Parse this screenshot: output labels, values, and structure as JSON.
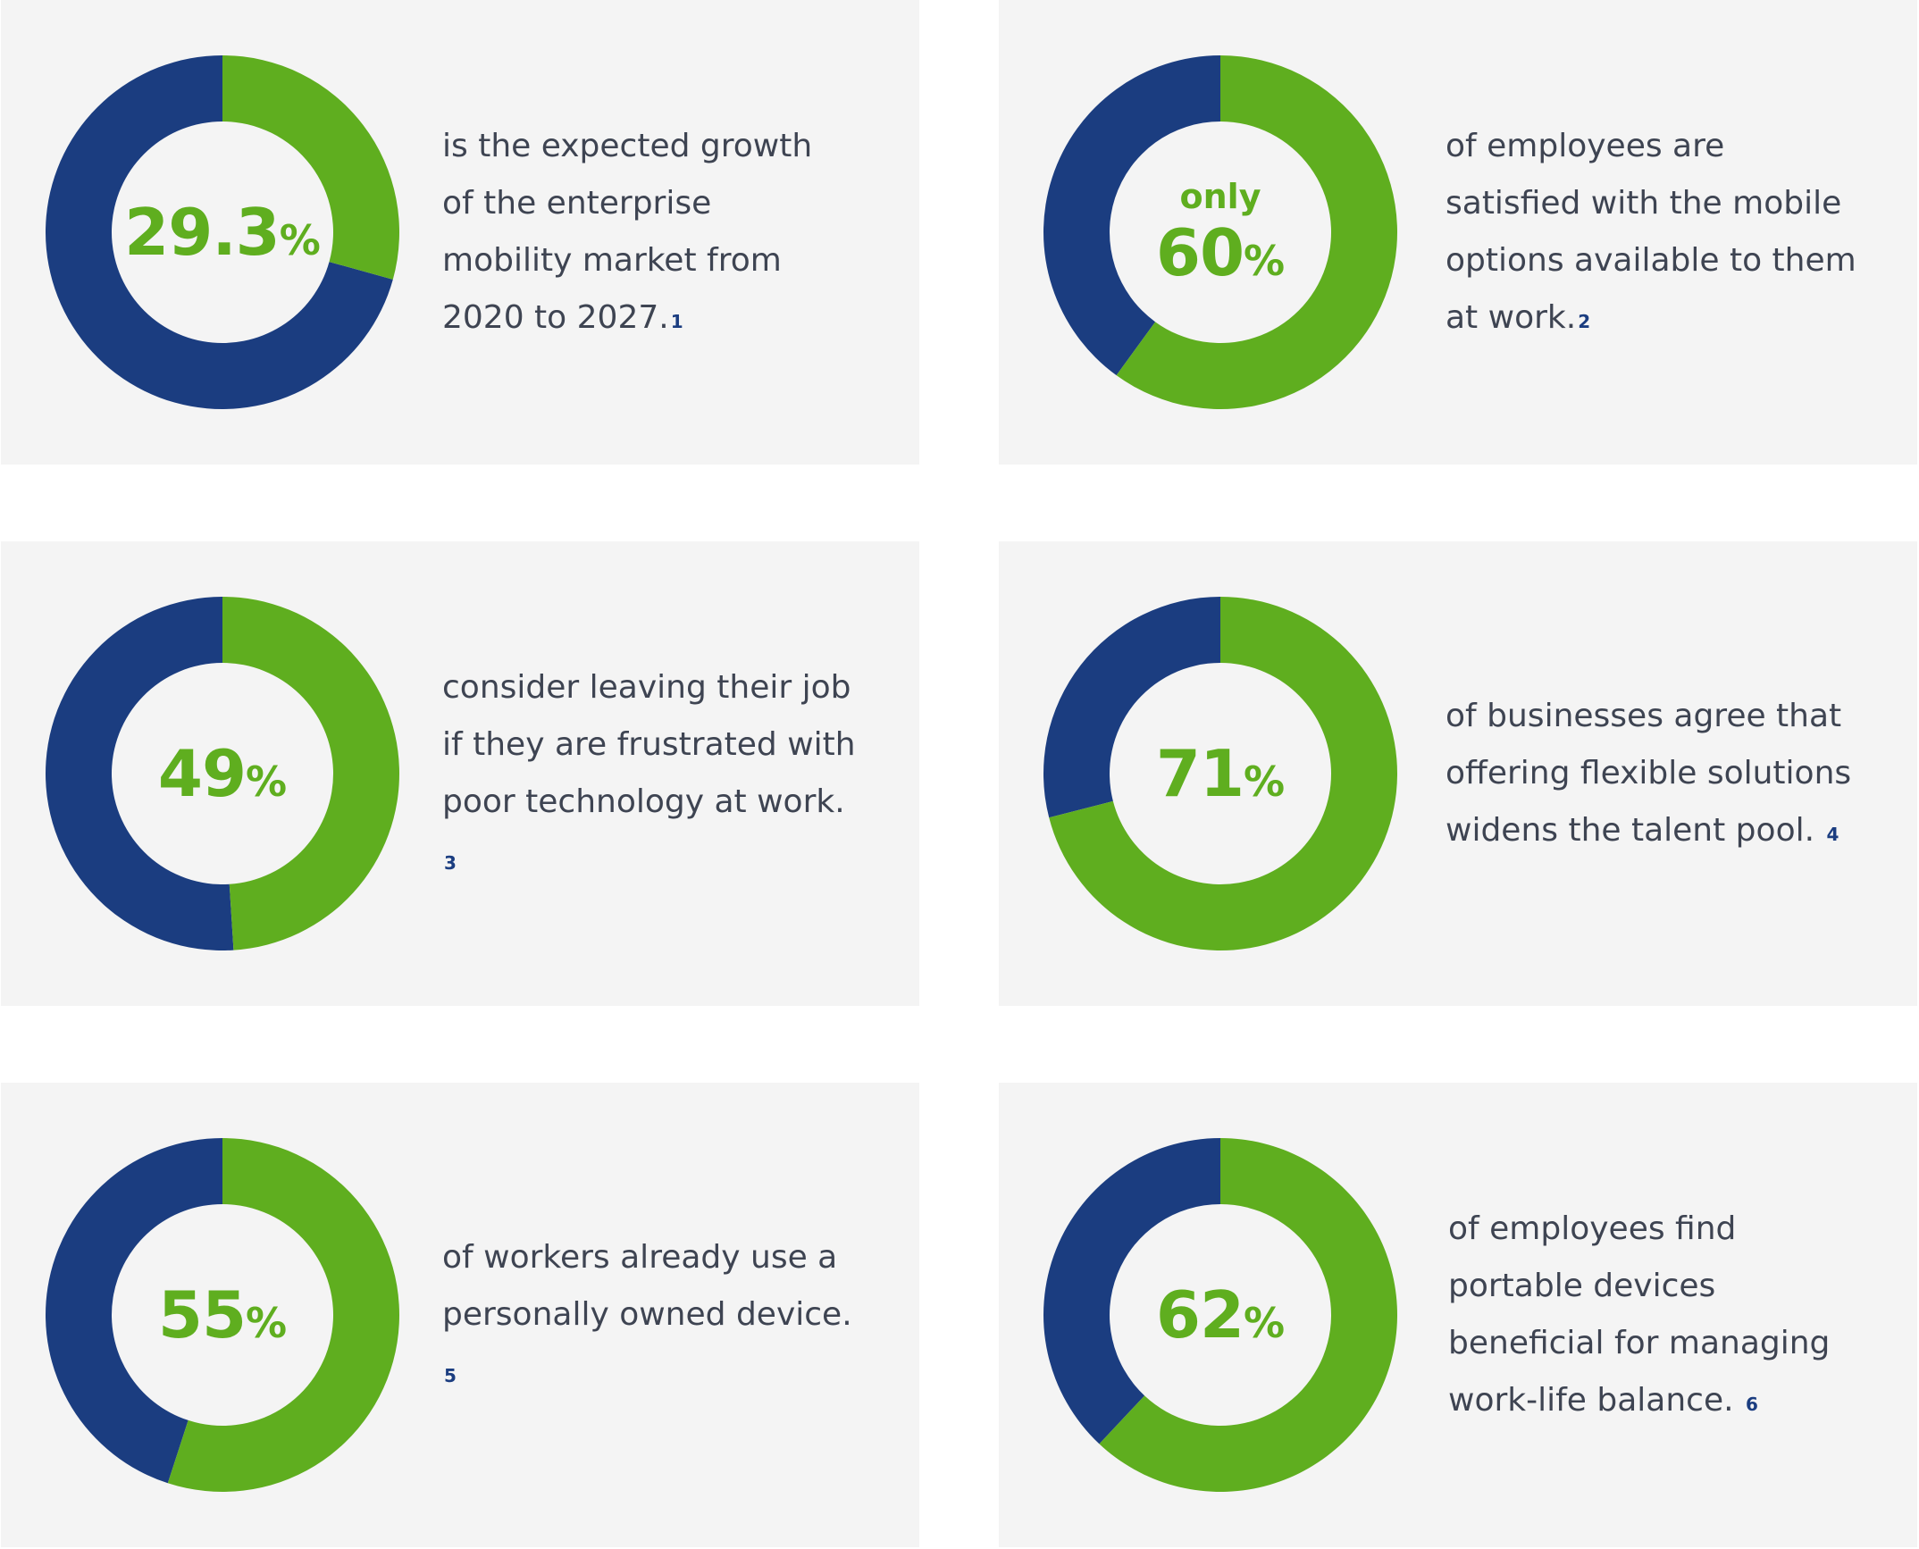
{
  "colors": {
    "green": "#5fae1f",
    "navy": "#1b3d80",
    "card_bg": "#f4f4f4",
    "text": "#3e4452"
  },
  "chart_data": [
    {
      "type": "pie",
      "prefix": "",
      "value": 29.3,
      "value_label": "29.3",
      "unit": "%",
      "text": "is the expected growth of the enterprise mobility market from 2020 to 2027.",
      "footnote": "1"
    },
    {
      "type": "pie",
      "prefix": "only",
      "value": 60,
      "value_label": "60",
      "unit": "%",
      "text": "of employees are satisfied with the mobile options available to them at work.",
      "footnote": "2"
    },
    {
      "type": "pie",
      "prefix": "",
      "value": 49,
      "value_label": "49",
      "unit": "%",
      "text": "consider leaving their job if they are frustrated with poor technology at work. ",
      "footnote": "3"
    },
    {
      "type": "pie",
      "prefix": "",
      "value": 71,
      "value_label": "71",
      "unit": "%",
      "text": "of businesses agree that offering flexible solutions widens the talent pool. ",
      "footnote": "4"
    },
    {
      "type": "pie",
      "prefix": "",
      "value": 55,
      "value_label": "55",
      "unit": "%",
      "text": "of workers already use a personally owned device. ",
      "footnote": "5"
    },
    {
      "type": "pie",
      "prefix": "",
      "value": 62,
      "value_label": "62",
      "unit": "%",
      "text": "of employees find portable devices beneficial for managing work-life balance. ",
      "footnote": "6"
    }
  ]
}
